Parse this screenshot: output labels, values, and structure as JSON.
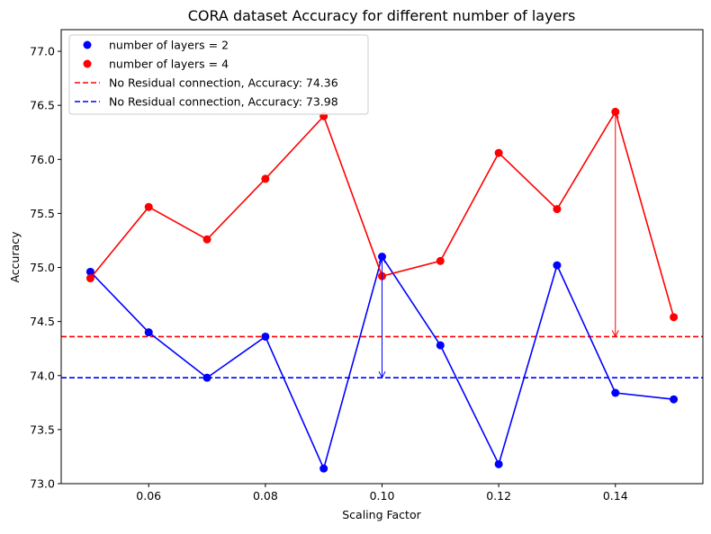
{
  "chart_data": {
    "type": "line",
    "title": "CORA dataset Accuracy for different number of layers",
    "xlabel": "Scaling Factor",
    "ylabel": "Accuracy",
    "xlim": [
      0.045,
      0.155
    ],
    "ylim": [
      73.0,
      77.2
    ],
    "x_ticks": [
      0.06,
      0.08,
      0.1,
      0.12,
      0.14
    ],
    "x_tick_labels": [
      "0.06",
      "0.08",
      "0.10",
      "0.12",
      "0.14"
    ],
    "y_ticks": [
      73.0,
      73.5,
      74.0,
      74.5,
      75.0,
      75.5,
      76.0,
      76.5,
      77.0
    ],
    "y_tick_labels": [
      "73.0",
      "73.5",
      "74.0",
      "74.5",
      "75.0",
      "75.5",
      "76.0",
      "76.5",
      "77.0"
    ],
    "x": [
      0.05,
      0.06,
      0.07,
      0.08,
      0.09,
      0.1,
      0.11,
      0.12,
      0.13,
      0.14,
      0.15
    ],
    "series": [
      {
        "name": "number of layers = 2",
        "color": "#0000ff",
        "values": [
          74.96,
          74.4,
          73.98,
          74.36,
          73.14,
          75.1,
          74.28,
          73.18,
          75.02,
          73.84,
          73.78
        ]
      },
      {
        "name": "number of layers = 4",
        "color": "#ff0000",
        "values": [
          74.9,
          75.56,
          75.26,
          75.82,
          76.4,
          74.92,
          75.06,
          76.06,
          75.54,
          76.44,
          74.54
        ]
      }
    ],
    "hlines": [
      {
        "name": "No Residual connection, Accuracy: 74.36",
        "y": 74.36,
        "color": "#ff0000"
      },
      {
        "name": "No Residual connection, Accuracy: 73.98",
        "y": 73.98,
        "color": "#0000ff"
      }
    ],
    "arrows": [
      {
        "x": 0.14,
        "from": 76.44,
        "to": 74.36,
        "color": "#ff0000"
      },
      {
        "x": 0.1,
        "from": 75.1,
        "to": 73.98,
        "color": "#0000ff"
      }
    ],
    "legend_position": "top-left",
    "grid": false
  }
}
